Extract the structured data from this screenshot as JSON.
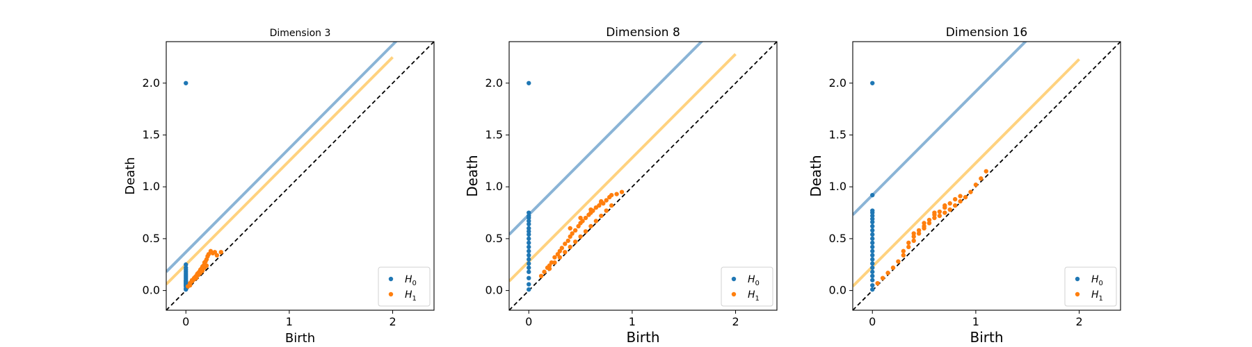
{
  "chart_data": [
    {
      "type": "scatter",
      "title": "Dimension 3",
      "xlabel": "Birth",
      "ylabel": "Death",
      "xlim": [
        -0.19,
        2.4
      ],
      "ylim": [
        -0.19,
        2.4
      ],
      "xticks": [
        0,
        1,
        2
      ],
      "yticks": [
        0.0,
        0.5,
        1.0,
        1.5,
        2.0
      ],
      "xtick_labels": [
        "0",
        "1",
        "2"
      ],
      "ytick_labels": [
        "0.0",
        "0.5",
        "1.0",
        "1.5",
        "2.0"
      ],
      "legend": {
        "placement": "lower-right",
        "entries": [
          "H0",
          "H1"
        ]
      },
      "colors": {
        "H0": "#1f77b4",
        "H1": "#ff7f0e",
        "H0_band": "#8ab4d6",
        "H1_band": "#ffd27f",
        "diagonal": "#000000"
      },
      "band_offsets": {
        "H0": 0.37,
        "H1": 0.25
      },
      "series": [
        {
          "name": "H0",
          "x": [
            0,
            0,
            0,
            0,
            0,
            0,
            0,
            0,
            0,
            0,
            0,
            0,
            0,
            0,
            0,
            0,
            0
          ],
          "y": [
            2.0,
            0.25,
            0.22,
            0.2,
            0.18,
            0.16,
            0.14,
            0.12,
            0.1,
            0.09,
            0.08,
            0.07,
            0.06,
            0.05,
            0.04,
            0.02,
            0.01
          ]
        },
        {
          "name": "H1",
          "x": [
            0.02,
            0.04,
            0.05,
            0.06,
            0.07,
            0.08,
            0.09,
            0.1,
            0.11,
            0.12,
            0.13,
            0.14,
            0.15,
            0.16,
            0.17,
            0.18,
            0.19,
            0.2,
            0.21,
            0.22,
            0.24,
            0.26,
            0.28,
            0.3,
            0.34,
            0.04,
            0.06,
            0.08,
            0.1,
            0.12,
            0.14,
            0.16,
            0.18,
            0.2
          ],
          "y": [
            0.04,
            0.07,
            0.08,
            0.1,
            0.1,
            0.12,
            0.13,
            0.14,
            0.16,
            0.17,
            0.18,
            0.2,
            0.21,
            0.23,
            0.24,
            0.27,
            0.28,
            0.3,
            0.33,
            0.35,
            0.38,
            0.36,
            0.37,
            0.34,
            0.37,
            0.05,
            0.09,
            0.11,
            0.12,
            0.15,
            0.17,
            0.19,
            0.22,
            0.24
          ]
        }
      ]
    },
    {
      "type": "scatter",
      "title": "Dimension 8",
      "xlabel": "Birth",
      "ylabel": "Death",
      "xlim": [
        -0.19,
        2.4
      ],
      "ylim": [
        -0.19,
        2.4
      ],
      "xticks": [
        0,
        1,
        2
      ],
      "yticks": [
        0.0,
        0.5,
        1.0,
        1.5,
        2.0
      ],
      "xtick_labels": [
        "0",
        "1",
        "2"
      ],
      "ytick_labels": [
        "0.0",
        "0.5",
        "1.0",
        "1.5",
        "2.0"
      ],
      "legend": {
        "placement": "lower-right",
        "entries": [
          "H0",
          "H1"
        ]
      },
      "colors": {
        "H0": "#1f77b4",
        "H1": "#ff7f0e",
        "H0_band": "#8ab4d6",
        "H1_band": "#ffd27f",
        "diagonal": "#000000"
      },
      "band_offsets": {
        "H0": 0.73,
        "H1": 0.28
      },
      "series": [
        {
          "name": "H0",
          "x": [
            0,
            0,
            0,
            0,
            0,
            0,
            0,
            0,
            0,
            0,
            0,
            0,
            0,
            0,
            0,
            0,
            0,
            0,
            0,
            0,
            0
          ],
          "y": [
            2.0,
            0.75,
            0.72,
            0.7,
            0.67,
            0.64,
            0.6,
            0.57,
            0.54,
            0.5,
            0.46,
            0.42,
            0.38,
            0.34,
            0.3,
            0.26,
            0.22,
            0.18,
            0.12,
            0.06,
            0.01
          ]
        },
        {
          "name": "H1",
          "x": [
            0.12,
            0.15,
            0.18,
            0.2,
            0.22,
            0.25,
            0.28,
            0.3,
            0.32,
            0.35,
            0.38,
            0.4,
            0.42,
            0.45,
            0.48,
            0.5,
            0.52,
            0.55,
            0.58,
            0.6,
            0.62,
            0.65,
            0.68,
            0.7,
            0.72,
            0.75,
            0.78,
            0.8,
            0.85,
            0.9,
            0.2,
            0.25,
            0.3,
            0.35,
            0.4,
            0.45,
            0.5,
            0.55,
            0.6,
            0.65,
            0.7,
            0.75,
            0.8,
            0.4,
            0.5,
            0.6,
            0.7
          ],
          "y": [
            0.14,
            0.18,
            0.22,
            0.24,
            0.27,
            0.32,
            0.35,
            0.38,
            0.41,
            0.45,
            0.48,
            0.52,
            0.55,
            0.58,
            0.62,
            0.65,
            0.67,
            0.7,
            0.73,
            0.75,
            0.77,
            0.8,
            0.82,
            0.85,
            0.84,
            0.87,
            0.9,
            0.92,
            0.93,
            0.95,
            0.21,
            0.27,
            0.32,
            0.37,
            0.42,
            0.47,
            0.52,
            0.57,
            0.62,
            0.67,
            0.72,
            0.77,
            0.82,
            0.6,
            0.7,
            0.78,
            0.86
          ]
        }
      ]
    },
    {
      "type": "scatter",
      "title": "Dimension 16",
      "xlabel": "Birth",
      "ylabel": "Death",
      "xlim": [
        -0.19,
        2.4
      ],
      "ylim": [
        -0.19,
        2.4
      ],
      "xticks": [
        0,
        1,
        2
      ],
      "yticks": [
        0.0,
        0.5,
        1.0,
        1.5,
        2.0
      ],
      "xtick_labels": [
        "0",
        "1",
        "2"
      ],
      "ytick_labels": [
        "0.0",
        "0.5",
        "1.0",
        "1.5",
        "2.0"
      ],
      "legend": {
        "placement": "lower-right",
        "entries": [
          "H0",
          "H1"
        ]
      },
      "colors": {
        "H0": "#1f77b4",
        "H1": "#ff7f0e",
        "H0_band": "#8ab4d6",
        "H1_band": "#ffd27f",
        "diagonal": "#000000"
      },
      "band_offsets": {
        "H0": 0.92,
        "H1": 0.23
      },
      "series": [
        {
          "name": "H0",
          "x": [
            0,
            0,
            0,
            0,
            0,
            0,
            0,
            0,
            0,
            0,
            0,
            0,
            0,
            0,
            0,
            0,
            0,
            0,
            0,
            0,
            0,
            0,
            0
          ],
          "y": [
            2.0,
            0.92,
            0.77,
            0.75,
            0.72,
            0.69,
            0.66,
            0.62,
            0.58,
            0.54,
            0.5,
            0.46,
            0.42,
            0.38,
            0.34,
            0.3,
            0.26,
            0.22,
            0.18,
            0.14,
            0.1,
            0.05,
            0.01
          ]
        },
        {
          "name": "H1",
          "x": [
            0.05,
            0.1,
            0.15,
            0.2,
            0.25,
            0.3,
            0.35,
            0.4,
            0.45,
            0.5,
            0.55,
            0.6,
            0.65,
            0.7,
            0.75,
            0.8,
            0.85,
            0.9,
            0.95,
            1.0,
            1.05,
            1.1,
            0.3,
            0.35,
            0.4,
            0.45,
            0.5,
            0.55,
            0.6,
            0.65,
            0.7,
            0.75,
            0.8,
            0.85,
            0.4,
            0.5,
            0.6,
            0.7
          ],
          "y": [
            0.07,
            0.12,
            0.17,
            0.22,
            0.28,
            0.34,
            0.42,
            0.48,
            0.55,
            0.6,
            0.65,
            0.7,
            0.72,
            0.75,
            0.78,
            0.82,
            0.86,
            0.9,
            0.95,
            1.02,
            1.08,
            1.15,
            0.38,
            0.46,
            0.52,
            0.58,
            0.62,
            0.68,
            0.73,
            0.76,
            0.8,
            0.84,
            0.88,
            0.91,
            0.55,
            0.65,
            0.75,
            0.82
          ]
        }
      ]
    }
  ]
}
